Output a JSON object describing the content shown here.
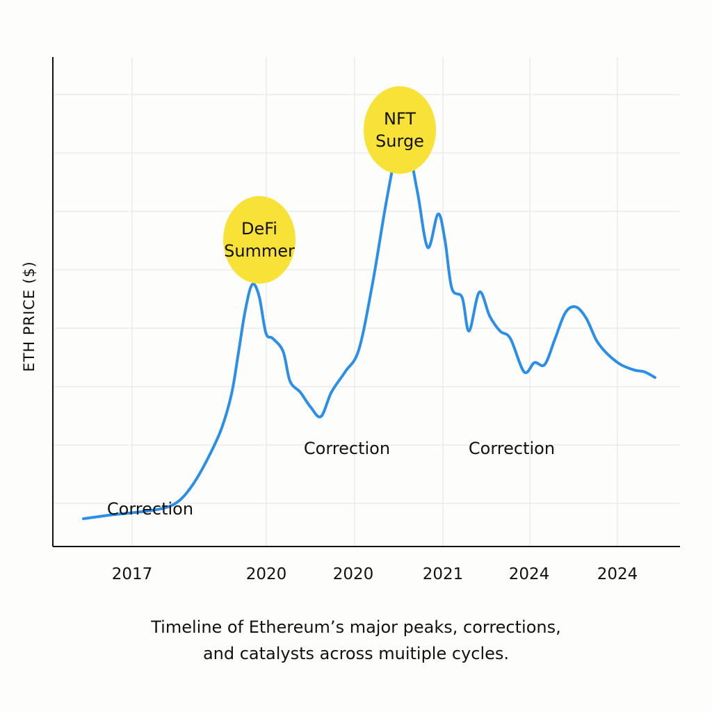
{
  "chart_data": {
    "type": "line",
    "ylabel": "ETH PRICE ($)",
    "xlabel": "",
    "x_tick_labels": [
      "2017",
      "2020",
      "2020",
      "2021",
      "2024",
      "2024"
    ],
    "grid": true,
    "y_tick_labels_shown": false,
    "series": [
      {
        "color": "#2b8ee8",
        "points": [
          [
            0.0,
            1.2
          ],
          [
            0.04,
            1.6
          ],
          [
            0.09,
            2.0
          ],
          [
            0.12,
            2.4
          ],
          [
            0.14,
            3.2
          ],
          [
            0.16,
            5.0
          ],
          [
            0.18,
            7.6
          ],
          [
            0.2,
            10.8
          ],
          [
            0.215,
            14.6
          ],
          [
            0.225,
            19.0
          ],
          [
            0.235,
            23.6
          ],
          [
            0.245,
            26.4
          ],
          [
            0.255,
            25.2
          ],
          [
            0.265,
            21.2
          ],
          [
            0.275,
            20.6
          ],
          [
            0.29,
            19.2
          ],
          [
            0.3,
            16.0
          ],
          [
            0.315,
            14.8
          ],
          [
            0.33,
            13.2
          ],
          [
            0.345,
            12.2
          ],
          [
            0.36,
            14.8
          ],
          [
            0.38,
            17.0
          ],
          [
            0.4,
            19.4
          ],
          [
            0.42,
            26.6
          ],
          [
            0.44,
            35.4
          ],
          [
            0.455,
            40.6
          ],
          [
            0.47,
            41.4
          ],
          [
            0.485,
            36.4
          ],
          [
            0.5,
            30.4
          ],
          [
            0.515,
            34.0
          ],
          [
            0.525,
            31.2
          ],
          [
            0.535,
            26.0
          ],
          [
            0.55,
            25.0
          ],
          [
            0.56,
            21.4
          ],
          [
            0.575,
            25.6
          ],
          [
            0.59,
            23.0
          ],
          [
            0.605,
            21.4
          ],
          [
            0.62,
            20.6
          ],
          [
            0.64,
            17.0
          ],
          [
            0.655,
            18.0
          ],
          [
            0.67,
            17.8
          ],
          [
            0.685,
            20.6
          ],
          [
            0.7,
            23.4
          ],
          [
            0.715,
            24.0
          ],
          [
            0.73,
            22.8
          ],
          [
            0.745,
            20.4
          ],
          [
            0.76,
            19.0
          ],
          [
            0.78,
            17.8
          ],
          [
            0.8,
            17.2
          ],
          [
            0.815,
            17.0
          ],
          [
            0.83,
            16.4
          ]
        ]
      }
    ],
    "annotations": {
      "bubbles": [
        {
          "line1": "DeFi",
          "line2": "Summer",
          "color": "#f9e238"
        },
        {
          "line1": "NFT",
          "line2": "Surge",
          "color": "#f9e238"
        }
      ],
      "labels": [
        "Correction",
        "Correction",
        "Correction"
      ]
    }
  },
  "caption": {
    "line1": "Timeline of Ethereum’s major peaks, corrections,",
    "line2": "and catalysts across muitiple cycles."
  }
}
